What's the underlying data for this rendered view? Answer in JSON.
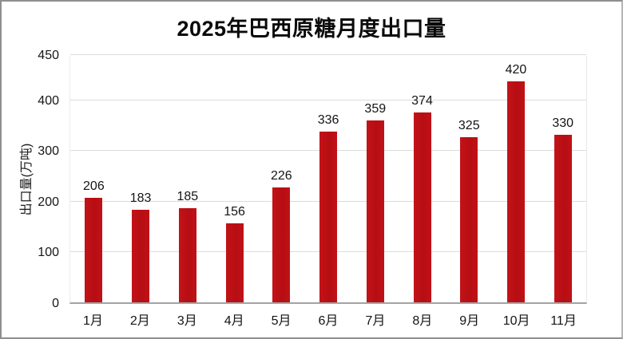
{
  "chart_data": {
    "type": "bar",
    "title": "2025年巴西原糖月度出口量",
    "ylabel": "出口量(万吨)",
    "xlabel": "",
    "categories": [
      "1月",
      "2月",
      "3月",
      "4月",
      "5月",
      "6月",
      "7月",
      "8月",
      "9月",
      "10月",
      "11月"
    ],
    "values": [
      206,
      183,
      185,
      156,
      226,
      336,
      359,
      374,
      325,
      420,
      330
    ],
    "yticks": [
      0,
      100,
      200,
      300,
      400,
      450
    ],
    "ylim": [
      0,
      450
    ],
    "legend": "none",
    "grid": "horizontal",
    "bar_color": "#bc1116",
    "grid_color": "#dcdcdc",
    "axis_color": "#a3a3a3",
    "text_color": "#141414"
  }
}
